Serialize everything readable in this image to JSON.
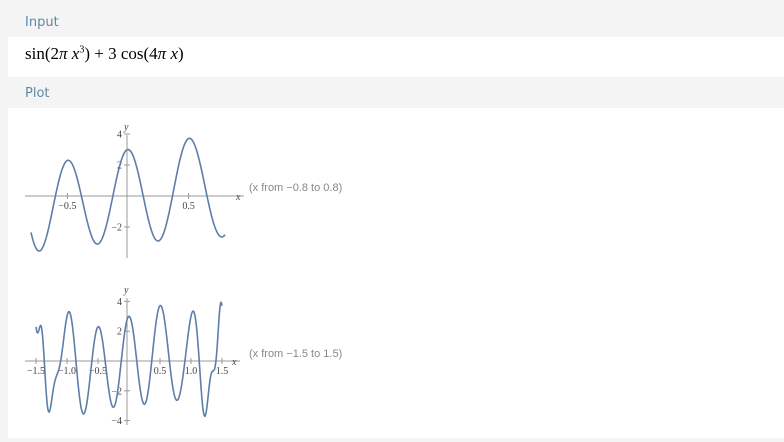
{
  "input_header": "Input",
  "plot_header": "Plot",
  "formula": {
    "part1": "sin(2",
    "pi": "π",
    "x": "x",
    "exp": "3",
    "part2": ") + 3 cos(4",
    "part3": ")"
  },
  "chart_data": [
    {
      "type": "line",
      "x_label": "x",
      "y_label": "y",
      "xlim": [
        -0.8,
        0.8
      ],
      "ylim": [
        -4,
        4
      ],
      "x_ticks": [
        -0.5,
        0.5
      ],
      "x_tick_labels": [
        "−0.5",
        "0.5"
      ],
      "y_ticks": [
        -2,
        2,
        4
      ],
      "y_tick_labels": [
        "−2",
        "2",
        "4"
      ],
      "range_label": "(x from −0.8 to 0.8)",
      "color": "#5d7ea8"
    },
    {
      "type": "line",
      "x_label": "x",
      "y_label": "y",
      "xlim": [
        -1.5,
        1.5
      ],
      "ylim": [
        -4,
        4
      ],
      "x_ticks": [
        -1.5,
        -1.0,
        -0.5,
        0.5,
        1.0,
        1.5
      ],
      "x_tick_labels": [
        "−1.5",
        "−1.0",
        "−0.5",
        "0.5",
        "1.0",
        "1.5"
      ],
      "y_ticks": [
        -4,
        -2,
        2,
        4
      ],
      "y_tick_labels": [
        "−4",
        "−2",
        "2",
        "4"
      ],
      "range_label": "(x from −1.5 to 1.5)",
      "color": "#5d7ea8"
    }
  ]
}
